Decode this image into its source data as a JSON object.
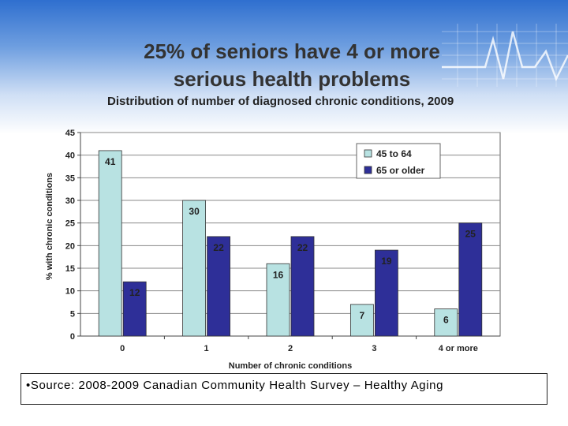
{
  "title_line1": "25% of seniors have 4 or more",
  "title_line2": "serious health problems",
  "chart_data": {
    "type": "bar",
    "title": "Distribution of number of diagnosed chronic conditions, 2009",
    "xlabel": "Number of chronic conditions",
    "ylabel": "% with chronic conditions",
    "ylim": [
      0,
      45
    ],
    "yticks": [
      0,
      5,
      10,
      15,
      20,
      25,
      30,
      35,
      40,
      45
    ],
    "categories": [
      "0",
      "1",
      "2",
      "3",
      "4 or more"
    ],
    "series": [
      {
        "name": "45 to 64",
        "color": "#b8e2e2",
        "values": [
          41,
          30,
          16,
          7,
          6
        ],
        "labels": [
          "41",
          "30",
          "16",
          "7",
          "6"
        ]
      },
      {
        "name": "65 or older",
        "color": "#2e2f98",
        "values": [
          12,
          22,
          22,
          19,
          25
        ],
        "labels": [
          "12",
          "22",
          "22",
          "19",
          "25"
        ]
      }
    ],
    "legend_position": "top-right",
    "grid": true
  },
  "source": "•Source: 2008-2009 Canadian Community Health Survey – Healthy Aging"
}
